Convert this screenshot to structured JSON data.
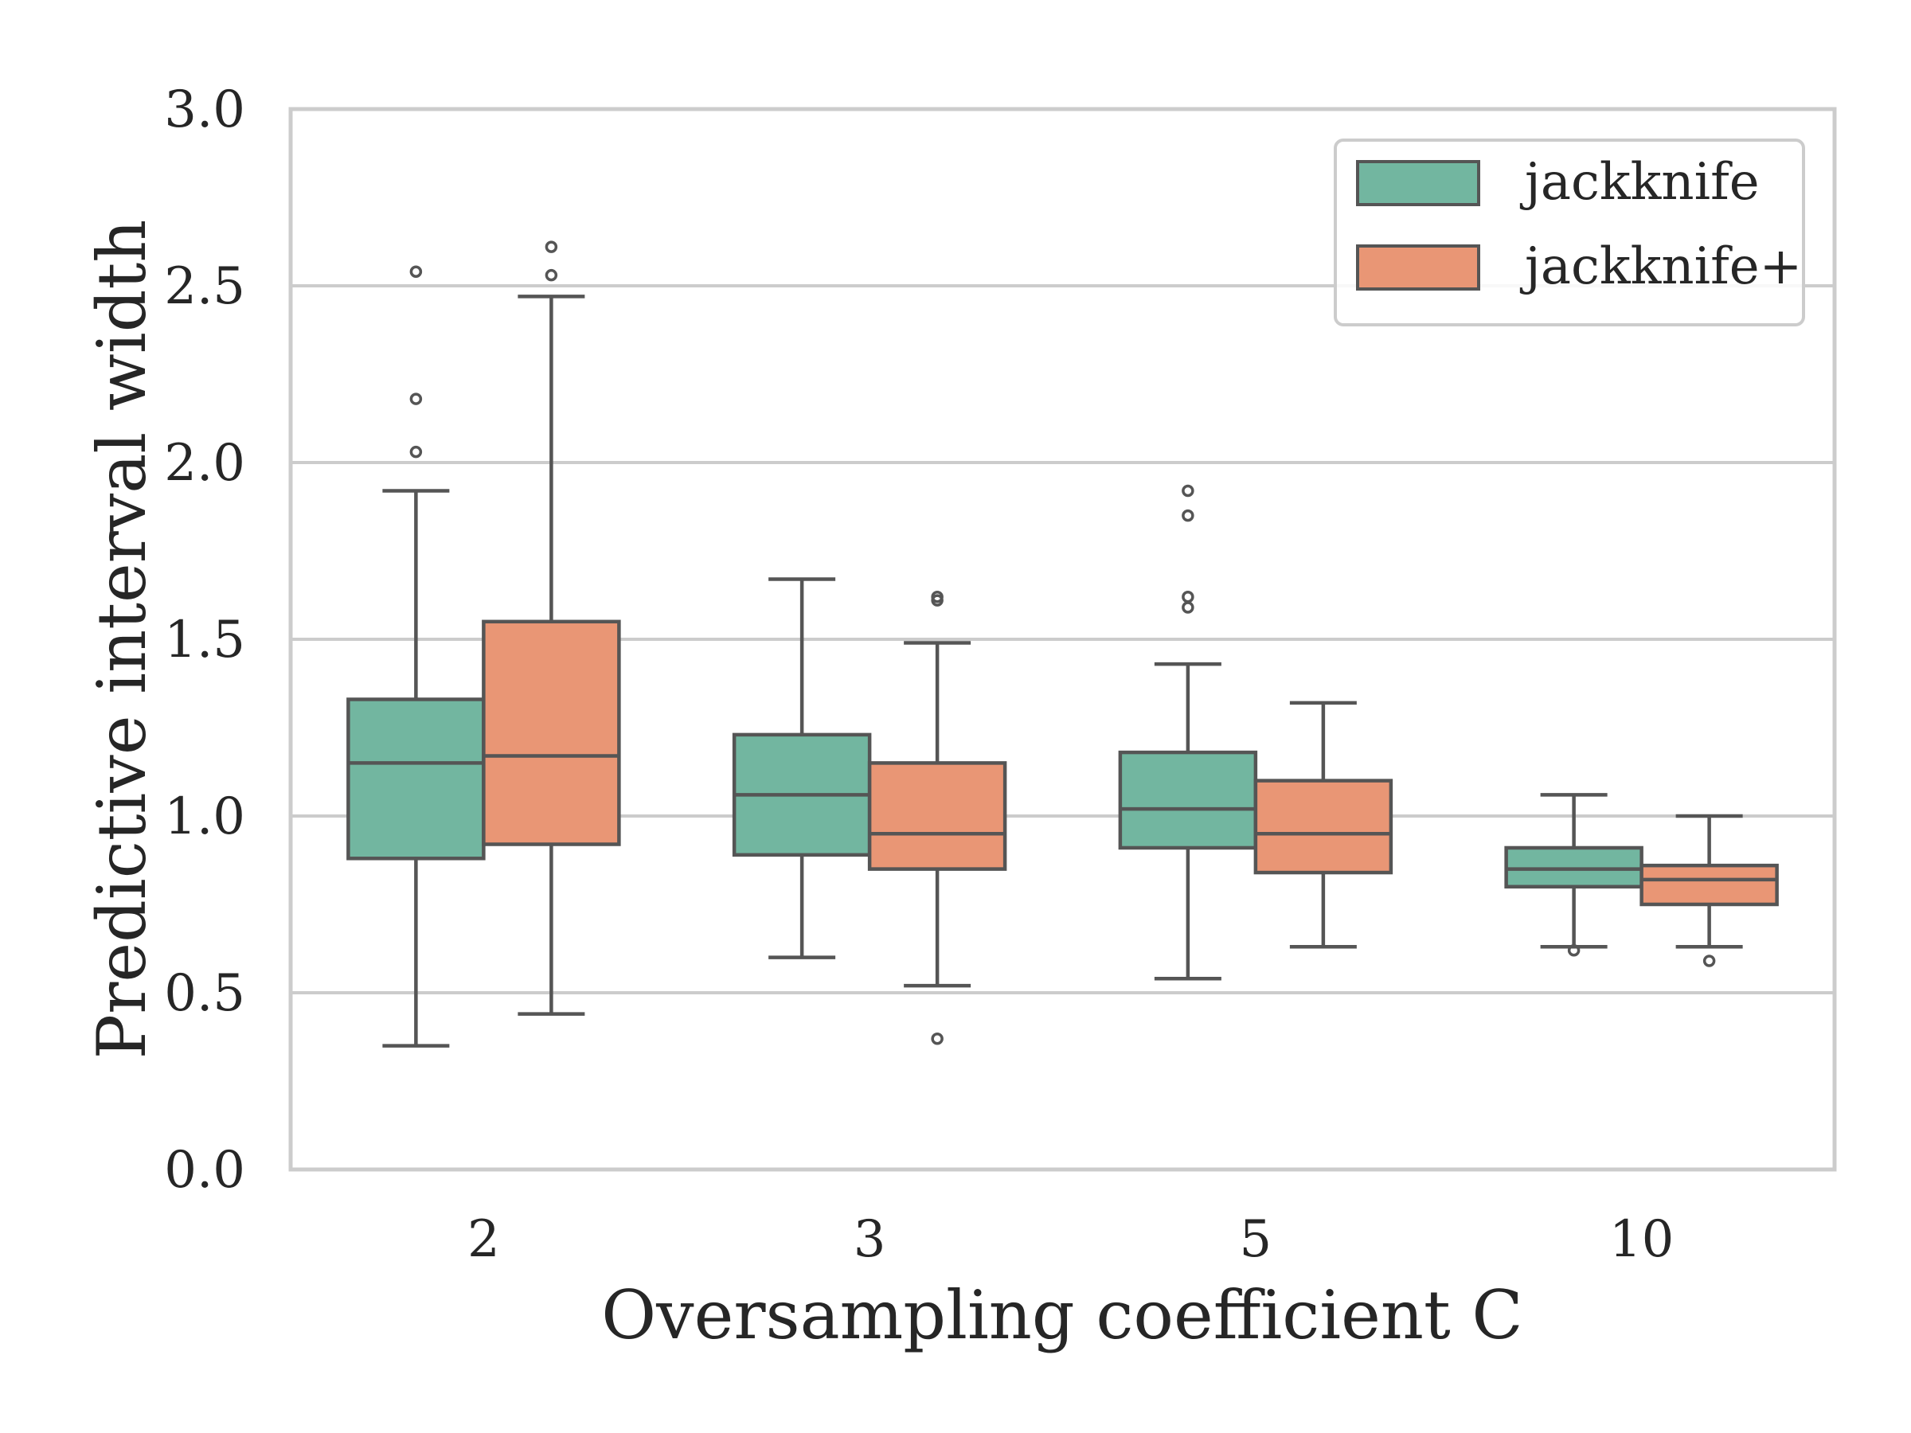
{
  "chart_data": {
    "type": "boxplot",
    "xlabel": "Oversampling coefficient C",
    "ylabel": "Predictive interval width",
    "ylim": [
      0,
      3
    ],
    "yticks": [
      "0.0",
      "0.5",
      "1.0",
      "1.5",
      "2.0",
      "2.5",
      "3.0"
    ],
    "grid": "horizontal",
    "legend_position": "top-right",
    "categories": [
      "2",
      "3",
      "5",
      "10"
    ],
    "series": [
      {
        "name": "jackknife",
        "color": "#72b6a0",
        "boxes": [
          {
            "whisker_low": 0.35,
            "q1": 0.88,
            "median": 1.15,
            "q3": 1.33,
            "whisker_high": 1.92,
            "outliers": [
              2.03,
              2.18,
              2.54
            ]
          },
          {
            "whisker_low": 0.6,
            "q1": 0.89,
            "median": 1.06,
            "q3": 1.23,
            "whisker_high": 1.67,
            "outliers": []
          },
          {
            "whisker_low": 0.54,
            "q1": 0.91,
            "median": 1.02,
            "q3": 1.18,
            "whisker_high": 1.43,
            "outliers": [
              1.59,
              1.62,
              1.85,
              1.92
            ]
          },
          {
            "whisker_low": 0.63,
            "q1": 0.8,
            "median": 0.85,
            "q3": 0.91,
            "whisker_high": 1.06,
            "outliers": [
              0.62
            ]
          }
        ]
      },
      {
        "name": "jackknife+",
        "color": "#e99675",
        "boxes": [
          {
            "whisker_low": 0.44,
            "q1": 0.92,
            "median": 1.17,
            "q3": 1.55,
            "whisker_high": 2.47,
            "outliers": [
              2.53,
              2.61
            ]
          },
          {
            "whisker_low": 0.52,
            "q1": 0.85,
            "median": 0.95,
            "q3": 1.15,
            "whisker_high": 1.49,
            "outliers": [
              0.37,
              1.61,
              1.62
            ]
          },
          {
            "whisker_low": 0.63,
            "q1": 0.84,
            "median": 0.95,
            "q3": 1.1,
            "whisker_high": 1.32,
            "outliers": []
          },
          {
            "whisker_low": 0.63,
            "q1": 0.75,
            "median": 0.82,
            "q3": 0.86,
            "whisker_high": 1.0,
            "outliers": [
              0.59
            ]
          }
        ]
      }
    ]
  }
}
